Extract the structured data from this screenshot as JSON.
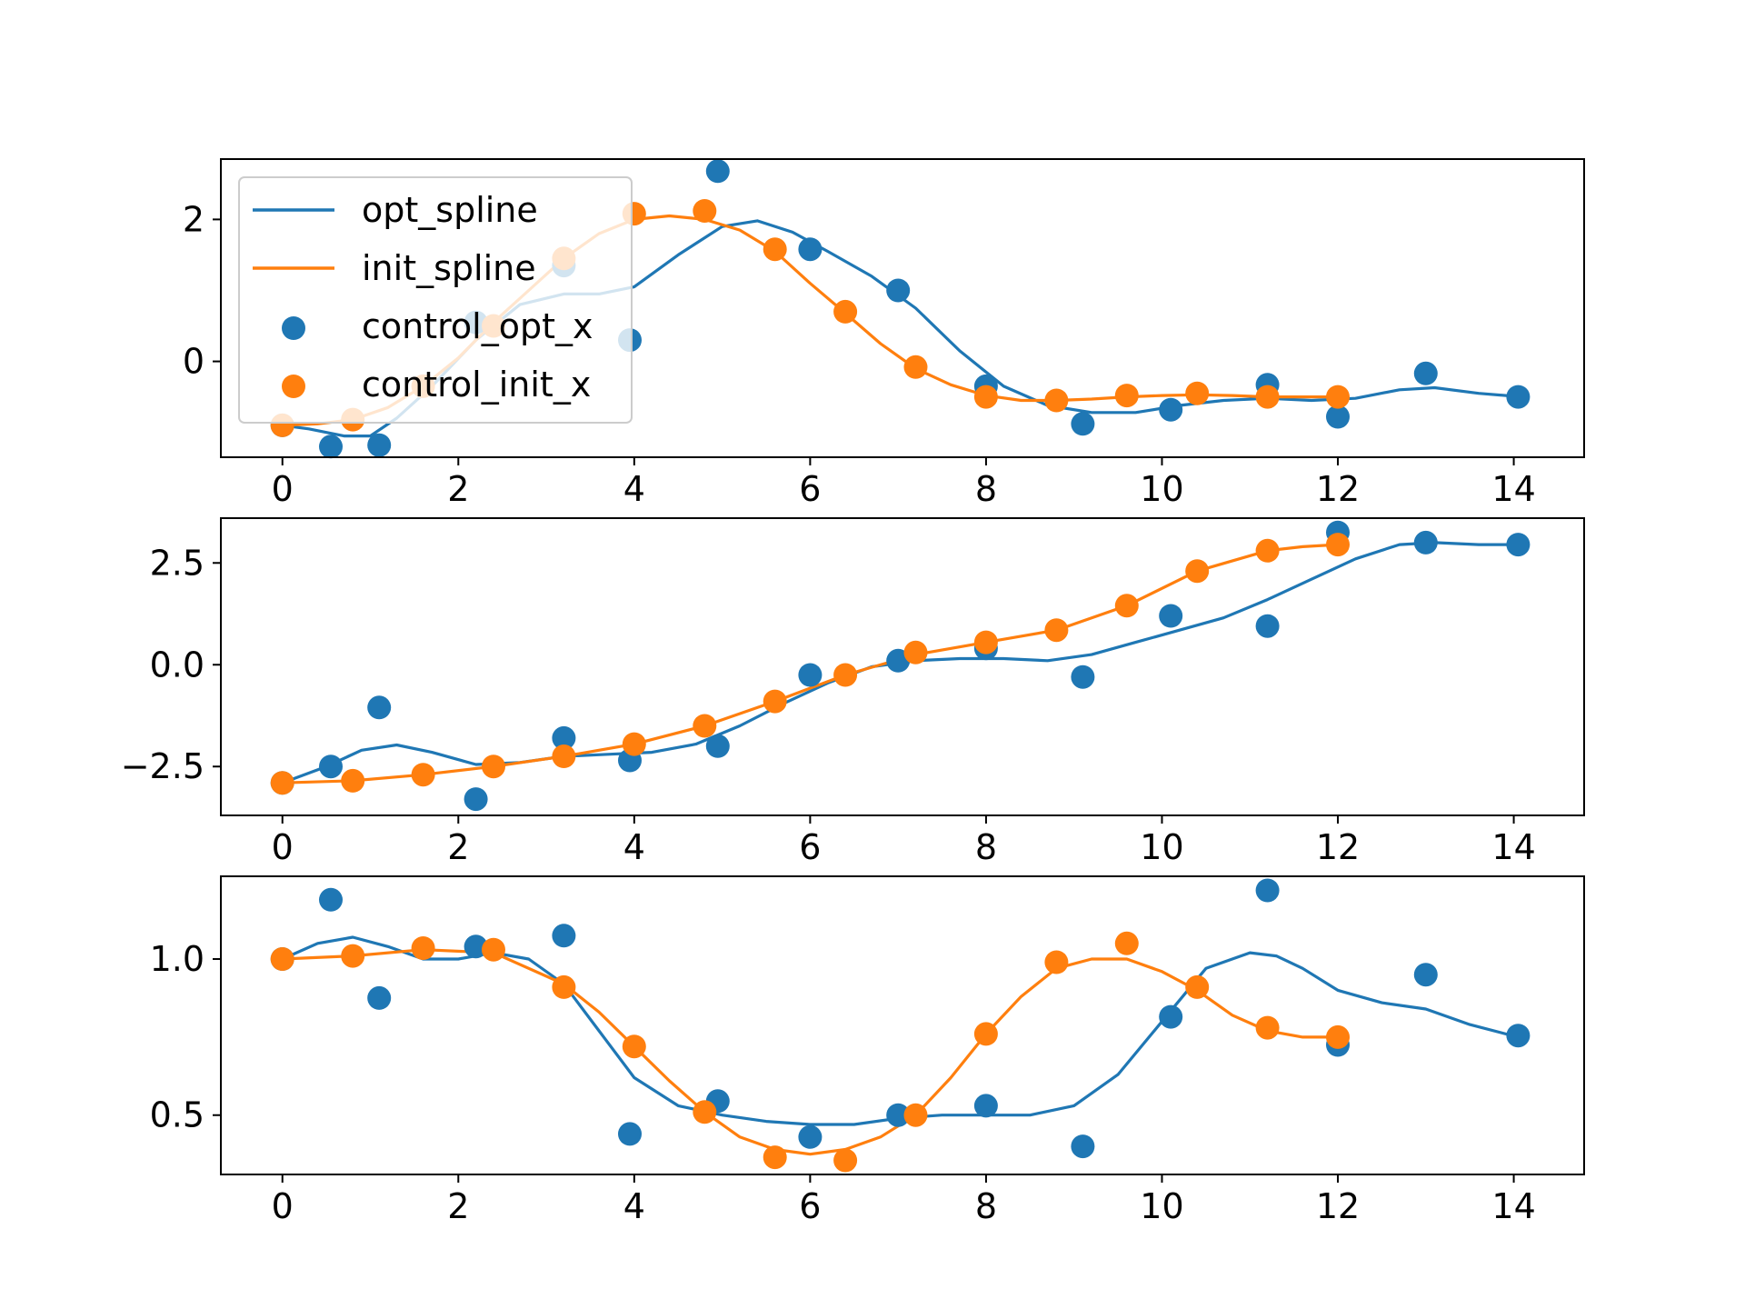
{
  "colors": {
    "opt": "#1f77b4",
    "init": "#ff7f0e",
    "axis": "#000000",
    "background": "#ffffff"
  },
  "legend": {
    "placement": "upper-left of top panel",
    "entries": [
      {
        "label": "opt_spline",
        "kind": "line",
        "series": "opt"
      },
      {
        "label": "init_spline",
        "kind": "line",
        "series": "init"
      },
      {
        "label": "control_opt_x",
        "kind": "marker",
        "series": "opt"
      },
      {
        "label": "control_init_x",
        "kind": "marker",
        "series": "init"
      }
    ]
  },
  "chart_data": [
    {
      "type": "scatter+line",
      "title": "",
      "xlabel": "",
      "ylabel": "",
      "xlim": [
        -0.7,
        14.8
      ],
      "ylim": [
        -1.35,
        2.85
      ],
      "xticks": [
        0,
        2,
        4,
        6,
        8,
        10,
        12,
        14
      ],
      "xtick_labels": [
        "0",
        "2",
        "4",
        "6",
        "8",
        "10",
        "12",
        "14"
      ],
      "yticks": [
        0,
        2
      ],
      "ytick_labels": [
        "0",
        "2"
      ],
      "grid": false,
      "legend": true,
      "series": [
        {
          "name": "opt_spline",
          "kind": "line",
          "color": "opt",
          "x": [
            0,
            0.3,
            0.7,
            1.0,
            1.3,
            1.7,
            2.2,
            2.7,
            3.2,
            3.6,
            4.0,
            4.5,
            5.0,
            5.4,
            5.8,
            6.2,
            6.7,
            7.2,
            7.7,
            8.2,
            8.7,
            9.2,
            9.7,
            10.2,
            10.7,
            11.2,
            11.7,
            12.2,
            12.7,
            13.1,
            13.6,
            14.1
          ],
          "y": [
            -0.9,
            -0.95,
            -1.05,
            -1.05,
            -0.8,
            -0.35,
            0.3,
            0.8,
            0.95,
            0.95,
            1.05,
            1.5,
            1.9,
            1.98,
            1.82,
            1.55,
            1.2,
            0.75,
            0.15,
            -0.35,
            -0.62,
            -0.72,
            -0.72,
            -0.62,
            -0.55,
            -0.52,
            -0.55,
            -0.52,
            -0.4,
            -0.37,
            -0.45,
            -0.5
          ]
        },
        {
          "name": "init_spline",
          "kind": "line",
          "color": "init",
          "x": [
            0,
            0.4,
            0.8,
            1.2,
            1.6,
            2.0,
            2.4,
            2.8,
            3.2,
            3.6,
            4.0,
            4.4,
            4.8,
            5.2,
            5.6,
            6.0,
            6.4,
            6.8,
            7.2,
            7.6,
            8.0,
            8.4,
            8.8,
            9.2,
            9.6,
            10.0,
            10.4,
            10.8,
            11.2,
            11.6,
            12.0
          ],
          "y": [
            -0.9,
            -0.88,
            -0.82,
            -0.65,
            -0.35,
            0.05,
            0.55,
            1.0,
            1.45,
            1.8,
            2.0,
            2.05,
            2.0,
            1.85,
            1.55,
            1.1,
            0.68,
            0.25,
            -0.1,
            -0.33,
            -0.48,
            -0.55,
            -0.55,
            -0.53,
            -0.5,
            -0.48,
            -0.47,
            -0.48,
            -0.5,
            -0.5,
            -0.5
          ]
        },
        {
          "name": "control_opt_x",
          "kind": "scatter",
          "color": "opt",
          "x": [
            0,
            0.55,
            1.1,
            2.2,
            3.2,
            3.95,
            4.95,
            6.0,
            7.0,
            8.0,
            9.1,
            10.1,
            11.2,
            12.0,
            13.0,
            14.05
          ],
          "y": [
            -0.9,
            -1.2,
            -1.18,
            0.55,
            1.35,
            0.3,
            2.68,
            1.58,
            1.0,
            -0.35,
            -0.88,
            -0.68,
            -0.33,
            -0.78,
            -0.17,
            -0.5
          ]
        },
        {
          "name": "control_init_x",
          "kind": "scatter",
          "color": "init",
          "x": [
            0,
            0.8,
            1.6,
            2.4,
            3.2,
            4.0,
            4.8,
            5.6,
            6.4,
            7.2,
            8.0,
            8.8,
            9.6,
            10.4,
            11.2,
            12.0
          ],
          "y": [
            -0.9,
            -0.82,
            -0.35,
            0.5,
            1.45,
            2.08,
            2.12,
            1.58,
            0.7,
            -0.08,
            -0.5,
            -0.55,
            -0.48,
            -0.45,
            -0.5,
            -0.5
          ]
        }
      ]
    },
    {
      "type": "scatter+line",
      "title": "",
      "xlabel": "",
      "ylabel": "",
      "xlim": [
        -0.7,
        14.8
      ],
      "ylim": [
        -3.7,
        3.6
      ],
      "xticks": [
        0,
        2,
        4,
        6,
        8,
        10,
        12,
        14
      ],
      "xtick_labels": [
        "0",
        "2",
        "4",
        "6",
        "8",
        "10",
        "12",
        "14"
      ],
      "yticks": [
        -2.5,
        0.0,
        2.5
      ],
      "ytick_labels": [
        "−2.5",
        "0.0",
        "2.5"
      ],
      "grid": false,
      "legend": false,
      "series": [
        {
          "name": "opt_spline",
          "kind": "line",
          "color": "opt",
          "x": [
            0,
            0.5,
            0.9,
            1.3,
            1.7,
            2.2,
            2.7,
            3.2,
            3.7,
            4.2,
            4.7,
            5.2,
            5.7,
            6.2,
            6.7,
            7.2,
            7.7,
            8.2,
            8.7,
            9.2,
            9.7,
            10.2,
            10.7,
            11.2,
            11.7,
            12.2,
            12.7,
            13.1,
            13.6,
            14.05
          ],
          "y": [
            -2.9,
            -2.5,
            -2.1,
            -1.97,
            -2.15,
            -2.45,
            -2.4,
            -2.25,
            -2.2,
            -2.15,
            -1.95,
            -1.5,
            -0.95,
            -0.45,
            -0.05,
            0.1,
            0.15,
            0.15,
            0.1,
            0.25,
            0.55,
            0.85,
            1.15,
            1.6,
            2.1,
            2.6,
            2.95,
            3.0,
            2.95,
            2.95
          ]
        },
        {
          "name": "init_spline",
          "kind": "line",
          "color": "init",
          "x": [
            0,
            0.8,
            1.6,
            2.4,
            3.2,
            4.0,
            4.8,
            5.6,
            6.4,
            7.2,
            8.0,
            8.8,
            9.6,
            10.4,
            11.2,
            11.6,
            12.0
          ],
          "y": [
            -2.9,
            -2.85,
            -2.7,
            -2.5,
            -2.25,
            -1.95,
            -1.5,
            -0.9,
            -0.25,
            0.25,
            0.55,
            0.85,
            1.45,
            2.3,
            2.8,
            2.9,
            2.95
          ]
        },
        {
          "name": "control_opt_x",
          "kind": "scatter",
          "color": "opt",
          "x": [
            0,
            0.55,
            1.1,
            2.2,
            3.2,
            3.95,
            4.95,
            6.0,
            7.0,
            8.0,
            9.1,
            10.1,
            11.2,
            12.0,
            13.0,
            14.05
          ],
          "y": [
            -2.9,
            -2.5,
            -1.05,
            -3.3,
            -1.8,
            -2.35,
            -2.0,
            -0.25,
            0.1,
            0.4,
            -0.3,
            1.2,
            0.95,
            3.25,
            3.0,
            2.95
          ]
        },
        {
          "name": "control_init_x",
          "kind": "scatter",
          "color": "init",
          "x": [
            0,
            0.8,
            1.6,
            2.4,
            3.2,
            4.0,
            4.8,
            5.6,
            6.4,
            7.2,
            8.0,
            8.8,
            9.6,
            10.4,
            11.2,
            12.0
          ],
          "y": [
            -2.9,
            -2.85,
            -2.7,
            -2.5,
            -2.25,
            -1.95,
            -1.5,
            -0.9,
            -0.25,
            0.3,
            0.55,
            0.85,
            1.45,
            2.3,
            2.8,
            2.95
          ]
        }
      ]
    },
    {
      "type": "scatter+line",
      "title": "",
      "xlabel": "",
      "ylabel": "",
      "xlim": [
        -0.7,
        14.8
      ],
      "ylim": [
        0.31,
        1.265
      ],
      "xticks": [
        0,
        2,
        4,
        6,
        8,
        10,
        12,
        14
      ],
      "xtick_labels": [
        "0",
        "2",
        "4",
        "6",
        "8",
        "10",
        "12",
        "14"
      ],
      "yticks": [
        0.5,
        1.0
      ],
      "ytick_labels": [
        "0.5",
        "1.0"
      ],
      "grid": false,
      "legend": false,
      "series": [
        {
          "name": "opt_spline",
          "kind": "line",
          "color": "opt",
          "x": [
            0,
            0.4,
            0.8,
            1.2,
            1.6,
            2.0,
            2.4,
            2.8,
            3.2,
            3.6,
            4.0,
            4.5,
            5.0,
            5.5,
            6.0,
            6.5,
            7.0,
            7.5,
            8.0,
            8.5,
            9.0,
            9.5,
            10.0,
            10.5,
            11.0,
            11.3,
            11.6,
            12.0,
            12.5,
            13.0,
            13.5,
            14.05
          ],
          "y": [
            1.0,
            1.05,
            1.07,
            1.04,
            1.0,
            1.0,
            1.02,
            1.0,
            0.92,
            0.77,
            0.62,
            0.53,
            0.5,
            0.48,
            0.47,
            0.47,
            0.49,
            0.5,
            0.5,
            0.5,
            0.53,
            0.63,
            0.8,
            0.97,
            1.02,
            1.01,
            0.97,
            0.9,
            0.86,
            0.84,
            0.79,
            0.75
          ]
        },
        {
          "name": "init_spline",
          "kind": "line",
          "color": "init",
          "x": [
            0,
            0.8,
            1.6,
            2.4,
            3.2,
            3.6,
            4.0,
            4.4,
            4.8,
            5.2,
            5.6,
            6.0,
            6.4,
            6.8,
            7.2,
            7.6,
            8.0,
            8.4,
            8.8,
            9.2,
            9.6,
            10.0,
            10.4,
            10.8,
            11.2,
            11.6,
            12.0
          ],
          "y": [
            1.0,
            1.01,
            1.03,
            1.02,
            0.92,
            0.83,
            0.72,
            0.61,
            0.51,
            0.43,
            0.39,
            0.375,
            0.39,
            0.43,
            0.5,
            0.62,
            0.76,
            0.88,
            0.97,
            1.0,
            1.0,
            0.96,
            0.9,
            0.82,
            0.77,
            0.75,
            0.75
          ]
        },
        {
          "name": "control_opt_x",
          "kind": "scatter",
          "color": "opt",
          "x": [
            0,
            0.55,
            1.1,
            2.2,
            3.2,
            3.95,
            4.95,
            6.0,
            7.0,
            8.0,
            9.1,
            10.1,
            11.2,
            12.0,
            13.0,
            14.05
          ],
          "y": [
            1.0,
            1.19,
            0.875,
            1.04,
            1.075,
            0.44,
            0.545,
            0.43,
            0.5,
            0.53,
            0.4,
            0.815,
            1.22,
            0.725,
            0.95,
            0.755
          ]
        },
        {
          "name": "control_init_x",
          "kind": "scatter",
          "color": "init",
          "x": [
            0,
            0.8,
            1.6,
            2.4,
            3.2,
            4.0,
            4.8,
            5.6,
            6.4,
            7.2,
            8.0,
            8.8,
            9.6,
            10.4,
            11.2,
            12.0
          ],
          "y": [
            1.0,
            1.01,
            1.035,
            1.03,
            0.91,
            0.72,
            0.51,
            0.365,
            0.355,
            0.5,
            0.76,
            0.99,
            1.05,
            0.91,
            0.78,
            0.75
          ]
        }
      ]
    }
  ]
}
